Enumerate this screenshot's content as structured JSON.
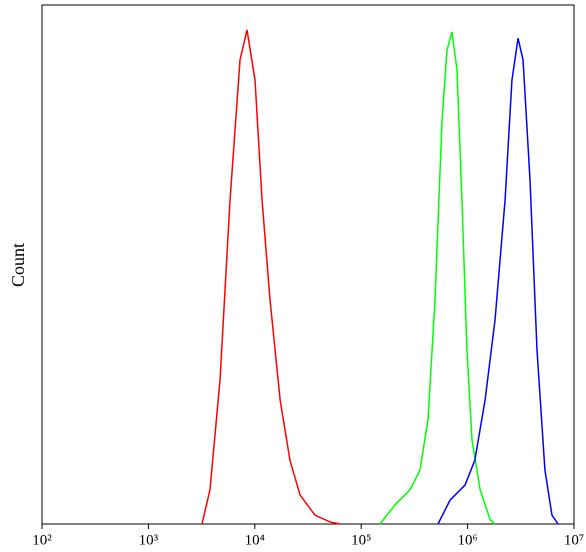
{
  "chart_data": {
    "type": "line",
    "y_label": "Count",
    "x_scale": "log",
    "xlim": [
      100,
      10000000
    ],
    "ylim": [
      0,
      100
    ],
    "xticks": [
      {
        "value": 100,
        "label": "10²"
      },
      {
        "value": 1000,
        "label": "10³"
      },
      {
        "value": 10000,
        "label": "10⁴"
      },
      {
        "value": 100000,
        "label": "10⁵"
      },
      {
        "value": 1000000,
        "label": "10⁶"
      },
      {
        "value": 10000000,
        "label": "10⁷"
      }
    ],
    "series": [
      {
        "color": "#ff0000",
        "x": [
          3190,
          3790,
          4710,
          5850,
          7260,
          8450,
          10050,
          11700,
          13900,
          17300,
          21400,
          26600,
          36800,
          50900,
          63200
        ],
        "values": [
          0,
          6.6,
          27.7,
          62.4,
          89.4,
          95.2,
          85.5,
          62.4,
          43.2,
          23.9,
          12.3,
          5.6,
          1.7,
          0.4,
          0
        ]
      },
      {
        "color": "#00ff00",
        "x": [
          150000,
          208000,
          288000,
          357000,
          425000,
          494000,
          575000,
          640000,
          713000,
          795000,
          885000,
          986000,
          1100000,
          1310000,
          1630000,
          1810000
        ],
        "values": [
          0,
          3.7,
          6.6,
          10.4,
          20.2,
          43.2,
          77.8,
          91.3,
          94.8,
          87.5,
          62.4,
          33.5,
          16.2,
          6.6,
          0.8,
          0
        ]
      },
      {
        "color": "#0000ff",
        "x": [
          527000,
          684000,
          946000,
          1170000,
          1460000,
          1810000,
          2250000,
          2610000,
          2980000,
          3320000,
          3860000,
          4490000,
          5330000,
          6210000,
          7080000
        ],
        "values": [
          0,
          4.6,
          7.5,
          12.3,
          23.9,
          39.3,
          62.4,
          85.5,
          93.6,
          89.4,
          66.3,
          33.5,
          10.4,
          1.7,
          0
        ]
      }
    ]
  }
}
